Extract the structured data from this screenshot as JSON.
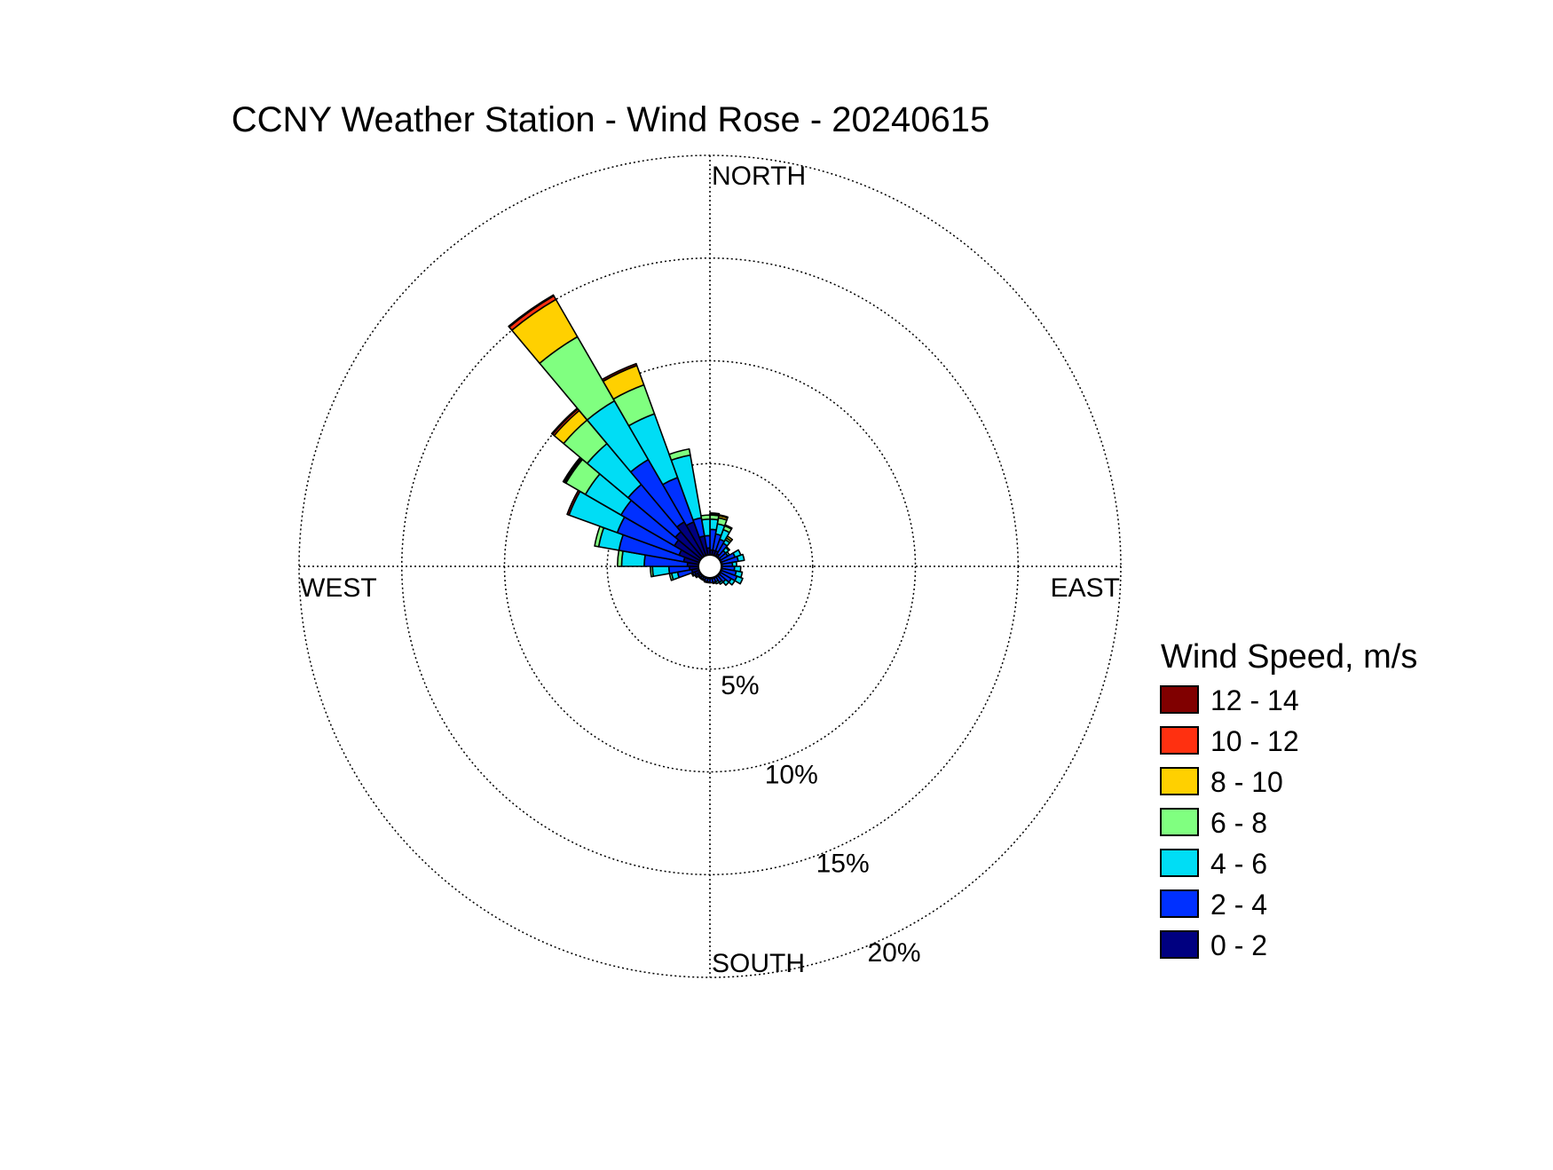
{
  "chart_data": {
    "type": "windrose",
    "title": "CCNY Weather Station - Wind Rose - 20240615",
    "direction_labels": {
      "north": "NORTH",
      "south": "SOUTH",
      "east": "EAST",
      "west": "WEST"
    },
    "radial_ticks": [
      5,
      10,
      15,
      20
    ],
    "radial_tick_labels": [
      "5%",
      "10%",
      "15%",
      "20%"
    ],
    "rmax": 20,
    "grid": true,
    "legend": {
      "title": "Wind Speed, m/s",
      "position": "right",
      "bins": [
        {
          "label": "12 - 14",
          "color": "#800000"
        },
        {
          "label": "10 - 12",
          "color": "#FF3010"
        },
        {
          "label": "8 - 10",
          "color": "#FFD000"
        },
        {
          "label": "6 - 8",
          "color": "#80FF80"
        },
        {
          "label": "4 - 6",
          "color": "#00DDF5"
        },
        {
          "label": "2 - 4",
          "color": "#0030FF"
        },
        {
          "label": "0 - 2",
          "color": "#000080"
        }
      ]
    },
    "bin_order_inner_to_outer": [
      "0 - 2",
      "2 - 4",
      "4 - 6",
      "6 - 8",
      "8 - 10",
      "10 - 12",
      "12 - 14"
    ],
    "sector_width_deg": 10,
    "sectors": [
      {
        "dir": 5,
        "cumulative": [
          0.8,
          1.8,
          2.3,
          2.5,
          2.55,
          2.6,
          2.6
        ]
      },
      {
        "dir": 15,
        "cumulative": [
          0.8,
          1.6,
          2.1,
          2.4,
          2.5,
          2.55,
          2.55
        ]
      },
      {
        "dir": 25,
        "cumulative": [
          0.8,
          1.4,
          1.9,
          2.1,
          2.15,
          2.15,
          2.15
        ]
      },
      {
        "dir": 35,
        "cumulative": [
          0.7,
          1.3,
          1.5,
          1.6,
          1.7,
          1.7,
          1.7
        ]
      },
      {
        "dir": 45,
        "cumulative": [
          0.6,
          1.0,
          1.2,
          1.25,
          1.25,
          1.25,
          1.25
        ]
      },
      {
        "dir": 55,
        "cumulative": [
          0.6,
          1.0,
          1.1,
          1.1,
          1.1,
          1.1,
          1.1
        ]
      },
      {
        "dir": 65,
        "cumulative": [
          0.6,
          1.3,
          1.6,
          1.6,
          1.6,
          1.6,
          1.6
        ]
      },
      {
        "dir": 75,
        "cumulative": [
          0.6,
          1.4,
          1.7,
          1.7,
          1.7,
          1.7,
          1.7
        ]
      },
      {
        "dir": 85,
        "cumulative": [
          0.6,
          1.1,
          1.3,
          1.3,
          1.3,
          1.3,
          1.3
        ]
      },
      {
        "dir": 95,
        "cumulative": [
          0.6,
          1.2,
          1.5,
          1.5,
          1.5,
          1.5,
          1.5
        ]
      },
      {
        "dir": 105,
        "cumulative": [
          0.6,
          1.3,
          1.6,
          1.6,
          1.6,
          1.6,
          1.6
        ]
      },
      {
        "dir": 115,
        "cumulative": [
          0.6,
          1.4,
          1.7,
          1.7,
          1.7,
          1.7,
          1.7
        ]
      },
      {
        "dir": 125,
        "cumulative": [
          0.6,
          1.2,
          1.4,
          1.4,
          1.4,
          1.4,
          1.4
        ]
      },
      {
        "dir": 135,
        "cumulative": [
          0.6,
          1.0,
          1.2,
          1.2,
          1.2,
          1.2,
          1.2
        ]
      },
      {
        "dir": 145,
        "cumulative": [
          0.6,
          0.9,
          1.0,
          1.0,
          1.0,
          1.0,
          1.0
        ]
      },
      {
        "dir": 155,
        "cumulative": [
          0.6,
          0.8,
          0.9,
          0.9,
          0.9,
          0.9,
          0.9
        ]
      },
      {
        "dir": 165,
        "cumulative": [
          0.6,
          0.8,
          0.85,
          0.85,
          0.85,
          0.85,
          0.85
        ]
      },
      {
        "dir": 175,
        "cumulative": [
          0.6,
          0.8,
          0.8,
          0.8,
          0.8,
          0.8,
          0.8
        ]
      },
      {
        "dir": 185,
        "cumulative": [
          0.6,
          0.75,
          0.8,
          0.8,
          0.8,
          0.8,
          0.8
        ]
      },
      {
        "dir": 195,
        "cumulative": [
          0.6,
          0.75,
          0.8,
          0.8,
          0.8,
          0.8,
          0.8
        ]
      },
      {
        "dir": 205,
        "cumulative": [
          0.6,
          0.7,
          0.75,
          0.75,
          0.75,
          0.75,
          0.75
        ]
      },
      {
        "dir": 215,
        "cumulative": [
          0.6,
          0.7,
          0.75,
          0.75,
          0.75,
          0.75,
          0.75
        ]
      },
      {
        "dir": 225,
        "cumulative": [
          0.6,
          0.7,
          0.75,
          0.75,
          0.75,
          0.75,
          0.75
        ]
      },
      {
        "dir": 235,
        "cumulative": [
          0.7,
          0.8,
          0.85,
          0.85,
          0.85,
          0.85,
          0.85
        ]
      },
      {
        "dir": 245,
        "cumulative": [
          0.8,
          0.9,
          0.95,
          0.95,
          0.95,
          0.95,
          0.95
        ]
      },
      {
        "dir": 255,
        "cumulative": [
          0.9,
          1.6,
          1.9,
          2.0,
          2.0,
          2.0,
          2.0
        ]
      },
      {
        "dir": 265,
        "cumulative": [
          1.0,
          2.0,
          2.8,
          2.9,
          2.9,
          2.9,
          2.9
        ]
      },
      {
        "dir": 275,
        "cumulative": [
          1.1,
          3.2,
          4.3,
          4.5,
          4.5,
          4.5,
          4.5
        ]
      },
      {
        "dir": 285,
        "cumulative": [
          1.3,
          4.5,
          5.5,
          5.7,
          5.7,
          5.7,
          5.7
        ]
      },
      {
        "dir": 295,
        "cumulative": [
          1.6,
          4.8,
          7.3,
          7.3,
          7.3,
          7.3,
          7.4
        ]
      },
      {
        "dir": 305,
        "cumulative": [
          2.0,
          5.0,
          7.0,
          8.1,
          8.15,
          8.2,
          8.25
        ]
      },
      {
        "dir": 315,
        "cumulative": [
          2.2,
          5.2,
          7.8,
          9.3,
          9.9,
          10.0,
          10.05
        ]
      },
      {
        "dir": 325,
        "cumulative": [
          2.5,
          6.0,
          9.3,
          12.9,
          15.0,
          15.2,
          15.25
        ]
      },
      {
        "dir": 335,
        "cumulative": [
          2.3,
          4.6,
          7.9,
          9.4,
          10.4,
          10.4,
          10.5
        ]
      },
      {
        "dir": 345,
        "cumulative": [
          1.5,
          2.4,
          5.5,
          5.8,
          5.8,
          5.8,
          5.8
        ]
      },
      {
        "dir": 355,
        "cumulative": [
          0.9,
          1.5,
          2.3,
          2.5,
          2.5,
          2.5,
          2.5
        ]
      }
    ]
  }
}
